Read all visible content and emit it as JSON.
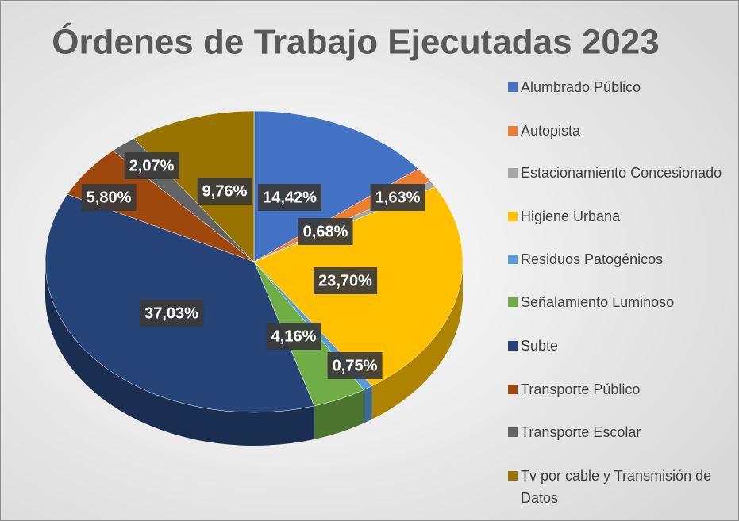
{
  "chart_data": {
    "type": "pie",
    "title": "Órdenes de Trabajo Ejecutadas 2023",
    "categories": [
      "Alumbrado Público",
      "Autopista",
      "Estacionamiento Concesionado",
      "Higiene Urbana",
      "Residuos Patogénicos",
      "Señalamiento Luminoso",
      "Subte",
      "Transporte Público",
      "Transporte Escolar",
      "Tv por cable y Transmisión de Datos"
    ],
    "values": [
      14.42,
      1.63,
      0.68,
      23.7,
      0.75,
      4.16,
      37.03,
      5.8,
      2.07,
      9.76
    ],
    "value_labels": [
      "14,42%",
      "1,63%",
      "0,68%",
      "23,70%",
      "0,75%",
      "4,16%",
      "37,03%",
      "5,80%",
      "2,07%",
      "9,76%"
    ],
    "colors": [
      "#4472c4",
      "#ed7d31",
      "#a5a5a5",
      "#ffc000",
      "#5b9bd5",
      "#70ad47",
      "#264478",
      "#9e480e",
      "#636363",
      "#997300"
    ],
    "legend": "right"
  }
}
